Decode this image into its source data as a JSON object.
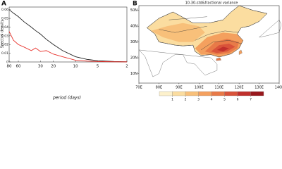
{
  "chart_data": [
    {
      "type": "line",
      "panel": "A",
      "ylabel": "Spectral density",
      "xlabel": "period (days)",
      "x": [
        80,
        70,
        60,
        50,
        40,
        35,
        30,
        25,
        20,
        15,
        10,
        7,
        5,
        3,
        2
      ],
      "xscale": "log",
      "xlim": [
        80,
        2
      ],
      "xticks": [
        80,
        60,
        30,
        20,
        10,
        5,
        2
      ],
      "ylim": [
        0,
        0.063
      ],
      "yticks": [
        0,
        0.01,
        0.02,
        0.03,
        0.04,
        0.05,
        0.06
      ],
      "series": [
        {
          "color": "#222222",
          "values": [
            0.06,
            0.056,
            0.052,
            0.046,
            0.04,
            0.036,
            0.032,
            0.026,
            0.02,
            0.013,
            0.006,
            0.003,
            0.0015,
            0.0005,
            0.0002
          ]
        },
        {
          "color": "#e8322c",
          "values": [
            0.035,
            0.025,
            0.02,
            0.017,
            0.013,
            0.016,
            0.012,
            0.013,
            0.009,
            0.006,
            0.002,
            0.001,
            0.0005,
            0.0002,
            0.0001
          ]
        }
      ]
    },
    {
      "type": "map",
      "panel": "B",
      "title": "10-30-std&fractional variance",
      "xlim": [
        70,
        140
      ],
      "ylim": [
        4,
        53
      ],
      "xticks": [
        {
          "value": 70,
          "label": "70E"
        },
        {
          "value": 80,
          "label": "80E"
        },
        {
          "value": 90,
          "label": "90E"
        },
        {
          "value": 100,
          "label": "100E"
        },
        {
          "value": 110,
          "label": "110E"
        },
        {
          "value": 120,
          "label": "120E"
        },
        {
          "value": 130,
          "label": "130E"
        },
        {
          "value": 140,
          "label": "140E"
        }
      ],
      "yticks": [
        {
          "value": 10,
          "label": "10N"
        },
        {
          "value": 20,
          "label": "20N"
        },
        {
          "value": 30,
          "label": "30N"
        },
        {
          "value": 40,
          "label": "40N"
        },
        {
          "value": 50,
          "label": "50N"
        }
      ],
      "colorbar": {
        "ticks": [
          1,
          2,
          3,
          4,
          5,
          6,
          7
        ],
        "colors": [
          "#fdf1cc",
          "#fbdda0",
          "#f8c07a",
          "#f4a05e",
          "#e87a48",
          "#d9533a",
          "#c0302c",
          "#98181d"
        ]
      }
    }
  ]
}
